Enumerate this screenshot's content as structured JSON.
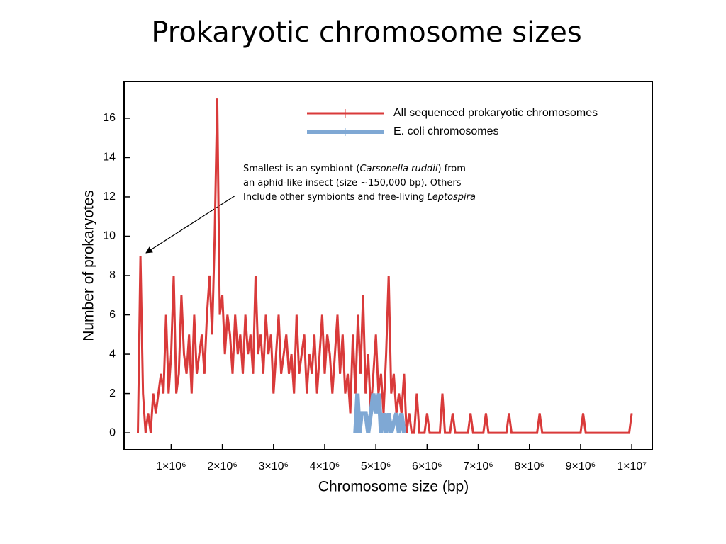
{
  "chart_data": {
    "type": "line",
    "title": "Prokaryotic chromosome sizes",
    "xlabel": "Chromosome size (bp)",
    "ylabel": "Number of prokaryotes",
    "xlim": [
      80000,
      10400000
    ],
    "ylim": [
      -0.86,
      17.87
    ],
    "xticks": [
      {
        "value": 1000000,
        "label": "1×10⁶"
      },
      {
        "value": 2000000,
        "label": "2×10⁶"
      },
      {
        "value": 3000000,
        "label": "3×10⁶"
      },
      {
        "value": 4000000,
        "label": "4×10⁶"
      },
      {
        "value": 5000000,
        "label": "5×10⁶"
      },
      {
        "value": 6000000,
        "label": "6×10⁶"
      },
      {
        "value": 7000000,
        "label": "7×10⁶"
      },
      {
        "value": 8000000,
        "label": "8×10⁶"
      },
      {
        "value": 9000000,
        "label": "9×10⁶"
      },
      {
        "value": 10000000,
        "label": "1×10⁷"
      }
    ],
    "yticks": [
      0,
      2,
      4,
      6,
      8,
      10,
      12,
      14,
      16
    ],
    "legend": "upper right",
    "annotation": [
      [
        {
          "text": "Smallest is an symbiont (",
          "italic": false
        },
        {
          "text": "Carsonella ruddii",
          "italic": true
        },
        {
          "text": ") from",
          "italic": false
        }
      ],
      [
        {
          "text": "an aphid-like insect (size ~150,000 bp). Others",
          "italic": false
        }
      ],
      [
        {
          "text": "Include other symbionts and free-living ",
          "italic": false
        },
        {
          "text": "Leptospira",
          "italic": true
        }
      ]
    ],
    "series": [
      {
        "name": "All sequenced prokaryotic chromosomes",
        "color": "#d93a3a",
        "width": 3,
        "x": [
          350000,
          400000,
          450000,
          500000,
          550000,
          600000,
          650000,
          700000,
          750000,
          800000,
          850000,
          900000,
          950000,
          1000000,
          1050000,
          1100000,
          1150000,
          1200000,
          1250000,
          1300000,
          1350000,
          1400000,
          1450000,
          1500000,
          1550000,
          1600000,
          1650000,
          1700000,
          1750000,
          1800000,
          1850000,
          1900000,
          1950000,
          2000000,
          2050000,
          2100000,
          2150000,
          2200000,
          2250000,
          2300000,
          2350000,
          2400000,
          2450000,
          2500000,
          2550000,
          2600000,
          2650000,
          2700000,
          2750000,
          2800000,
          2850000,
          2900000,
          2950000,
          3000000,
          3050000,
          3100000,
          3150000,
          3200000,
          3250000,
          3300000,
          3350000,
          3400000,
          3450000,
          3500000,
          3550000,
          3600000,
          3650000,
          3700000,
          3750000,
          3800000,
          3850000,
          3900000,
          3950000,
          4000000,
          4050000,
          4100000,
          4150000,
          4200000,
          4250000,
          4300000,
          4350000,
          4400000,
          4450000,
          4500000,
          4550000,
          4600000,
          4650000,
          4700000,
          4750000,
          4800000,
          4850000,
          4900000,
          4950000,
          5000000,
          5050000,
          5100000,
          5150000,
          5200000,
          5250000,
          5300000,
          5350000,
          5400000,
          5450000,
          5500000,
          5550000,
          5600000,
          5650000,
          5700000,
          5750000,
          5800000,
          5850000,
          5950000,
          6000000,
          6050000,
          6250000,
          6300000,
          6350000,
          6450000,
          6500000,
          6550000,
          6800000,
          6850000,
          6900000,
          7100000,
          7150000,
          7200000,
          7550000,
          7600000,
          7650000,
          8150000,
          8200000,
          8250000,
          9000000,
          9050000,
          9100000,
          9950000,
          10000000
        ],
        "values": [
          0,
          9,
          2,
          0,
          1,
          0,
          2,
          1,
          2,
          3,
          2,
          6,
          2,
          4,
          8,
          2,
          3,
          7,
          4,
          3,
          5,
          2,
          6,
          3,
          4,
          5,
          3,
          6,
          8,
          5,
          10,
          17,
          6,
          7,
          4,
          6,
          5,
          3,
          6,
          4,
          5,
          3,
          6,
          4,
          5,
          3,
          8,
          4,
          5,
          3,
          6,
          4,
          5,
          2,
          4,
          6,
          3,
          4,
          5,
          3,
          4,
          2,
          6,
          3,
          4,
          5,
          2,
          4,
          3,
          5,
          2,
          4,
          6,
          3,
          5,
          4,
          2,
          4,
          6,
          3,
          5,
          2,
          3,
          1,
          5,
          2,
          6,
          3,
          7,
          2,
          4,
          1,
          3,
          5,
          2,
          3,
          1,
          4,
          8,
          2,
          3,
          1,
          2,
          1,
          3,
          0,
          1,
          0,
          0,
          2,
          0,
          0,
          1,
          0,
          0,
          2,
          0,
          0,
          1,
          0,
          0,
          1,
          0,
          0,
          1,
          0,
          0,
          1,
          0,
          0,
          1,
          0,
          0,
          1,
          0,
          0,
          1
        ]
      },
      {
        "name": "E. coli chromosomes",
        "color": "#7fa8d4",
        "width": 6,
        "x": [
          4600000,
          4640000,
          4680000,
          4720000,
          4800000,
          4850000,
          4900000,
          4950000,
          5000000,
          5060000,
          5100000,
          5150000,
          5200000,
          5250000,
          5300000,
          5400000,
          5450000,
          5500000,
          5550000
        ],
        "values": [
          0,
          2,
          0,
          1,
          1,
          0,
          1,
          2,
          1,
          2,
          0,
          1,
          0,
          1,
          0,
          1,
          0,
          1,
          0
        ]
      }
    ]
  }
}
